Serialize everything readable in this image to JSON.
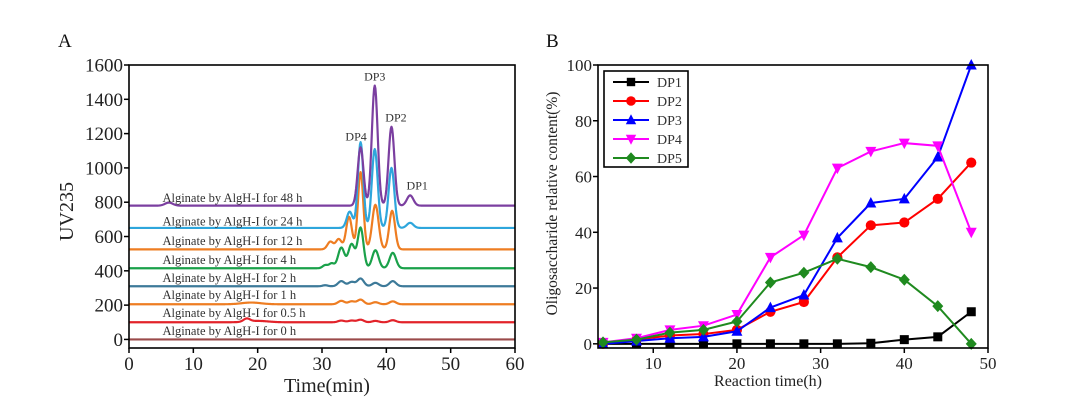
{
  "chart_data": [
    {
      "panel": "A",
      "type": "line",
      "title": "",
      "xlabel": "Time(min)",
      "ylabel": "UV235",
      "xlim": [
        0,
        60
      ],
      "ylim": [
        -50,
        1600
      ],
      "xticks": [
        0,
        10,
        20,
        30,
        40,
        50,
        60
      ],
      "yticks": [
        0,
        200,
        400,
        600,
        800,
        1000,
        1200,
        1400,
        1600
      ],
      "grid": false,
      "peak_labels": [
        {
          "text": "DP4",
          "x": 35.3,
          "y": 1160
        },
        {
          "text": "DP3",
          "x": 38.2,
          "y": 1510
        },
        {
          "text": "DP2",
          "x": 41.5,
          "y": 1270
        },
        {
          "text": "DP1",
          "x": 44.8,
          "y": 875
        }
      ],
      "series": [
        {
          "name": "Alginate by AlgH-I for 48 h",
          "color": "#7b3fa0",
          "baseline": 780,
          "peaks": [
            [
              6.2,
              18,
              0.6
            ],
            [
              36.0,
              340,
              0.45
            ],
            [
              38.2,
              700,
              0.45
            ],
            [
              40.8,
              460,
              0.45
            ],
            [
              43.7,
              60,
              0.5
            ]
          ]
        },
        {
          "name": "Alginate by AlgH-I for 24 h",
          "color": "#2ea6dc",
          "baseline": 650,
          "peaks": [
            [
              34.3,
              95,
              0.45
            ],
            [
              36.0,
              500,
              0.42
            ],
            [
              38.2,
              460,
              0.45
            ],
            [
              40.8,
              350,
              0.45
            ],
            [
              43.7,
              30,
              0.5
            ]
          ]
        },
        {
          "name": "Alginate by AlgH-I for 12 h",
          "color": "#ee7d22",
          "baseline": 525,
          "peaks": [
            [
              31.3,
              45,
              0.45
            ],
            [
              32.6,
              60,
              0.45
            ],
            [
              34.2,
              190,
              0.45
            ],
            [
              36.0,
              450,
              0.42
            ],
            [
              38.3,
              260,
              0.5
            ],
            [
              40.9,
              225,
              0.45
            ]
          ]
        },
        {
          "name": "Alginate by AlgH-I for 4 h",
          "color": "#1aa14a",
          "baseline": 415,
          "peaks": [
            [
              30.5,
              18,
              0.4
            ],
            [
              31.5,
              28,
              0.4
            ],
            [
              33.0,
              120,
              0.5
            ],
            [
              34.6,
              140,
              0.5
            ],
            [
              36.0,
              235,
              0.45
            ],
            [
              38.3,
              105,
              0.5
            ],
            [
              41.0,
              90,
              0.5
            ]
          ]
        },
        {
          "name": "Alginate by AlgH-I for 2 h",
          "color": "#3d7a99",
          "baseline": 310,
          "peaks": [
            [
              30.5,
              6,
              0.4
            ],
            [
              33.0,
              30,
              0.5
            ],
            [
              34.6,
              25,
              0.5
            ],
            [
              36.0,
              45,
              0.5
            ],
            [
              38.3,
              20,
              0.5
            ],
            [
              41.0,
              30,
              0.5
            ]
          ]
        },
        {
          "name": "Alginate by AlgH-I for 1 h",
          "color": "#ee7d22",
          "baseline": 205,
          "peaks": [
            [
              19.0,
              10,
              1.5
            ],
            [
              33.0,
              20,
              0.5
            ],
            [
              34.6,
              17,
              0.5
            ],
            [
              36.0,
              27,
              0.5
            ],
            [
              38.3,
              12,
              0.5
            ],
            [
              41.0,
              17,
              0.5
            ]
          ]
        },
        {
          "name": "Alginate by AlgH-I for 0.5 h",
          "color": "#e2232a",
          "baseline": 100,
          "peaks": [
            [
              18.3,
              18,
              0.5
            ],
            [
              20.0,
              8,
              1.6
            ],
            [
              33.0,
              10,
              0.5
            ],
            [
              34.6,
              10,
              0.5
            ],
            [
              36.0,
              15,
              0.5
            ],
            [
              38.3,
              8,
              0.5
            ],
            [
              41.0,
              12,
              0.5
            ]
          ]
        },
        {
          "name": "Alginate by AlgH-I for 0 h",
          "color": "#9b4a4a",
          "baseline": 0,
          "peaks": []
        }
      ],
      "trace_label_positions": [
        {
          "x": 5.2,
          "y": 800
        },
        {
          "x": 5.2,
          "y": 665
        },
        {
          "x": 5.2,
          "y": 550
        },
        {
          "x": 5.2,
          "y": 440
        },
        {
          "x": 5.2,
          "y": 335
        },
        {
          "x": 5.2,
          "y": 235
        },
        {
          "x": 5.2,
          "y": 130
        },
        {
          "x": 5.2,
          "y": 25
        }
      ]
    },
    {
      "panel": "B",
      "type": "line",
      "title": "",
      "xlabel": "Reaction time(h)",
      "ylabel": "Oligosaccharide relative content(%)",
      "xlim": [
        3.4,
        50
      ],
      "ylim": [
        -1.5,
        100
      ],
      "xticks": [
        10,
        20,
        30,
        40,
        50
      ],
      "yticks": [
        0,
        20,
        40,
        60,
        80,
        100
      ],
      "grid": false,
      "legend": "top-left",
      "x": [
        4,
        8,
        12,
        16,
        20,
        24,
        28,
        32,
        36,
        40,
        44,
        48
      ],
      "series": [
        {
          "name": "DP1",
          "color": "#000000",
          "marker": "square",
          "values": [
            0,
            0,
            0,
            0,
            0,
            0,
            0,
            0,
            0.2,
            1.5,
            2.5,
            11.5
          ]
        },
        {
          "name": "DP2",
          "color": "#ff0000",
          "marker": "circle",
          "values": [
            0,
            1.5,
            3,
            3.5,
            5,
            11.5,
            15,
            31,
            42.5,
            43.5,
            52,
            65
          ]
        },
        {
          "name": "DP3",
          "color": "#0000ff",
          "marker": "triangle-up",
          "values": [
            0,
            1,
            2,
            2.5,
            4.5,
            13,
            17.5,
            38,
            50.5,
            52,
            67,
            100
          ]
        },
        {
          "name": "DP4",
          "color": "#ff00ff",
          "marker": "triangle-down",
          "values": [
            0.5,
            2,
            5,
            6.5,
            10.5,
            31,
            39,
            63,
            69,
            72,
            71,
            40
          ]
        },
        {
          "name": "DP5",
          "color": "#1f8a1f",
          "marker": "diamond",
          "values": [
            0.5,
            1.5,
            4,
            5,
            8,
            22,
            25.5,
            30.5,
            27.5,
            23,
            13.5,
            0
          ]
        }
      ]
    }
  ],
  "panels": {
    "a_letter": "A",
    "b_letter": "B"
  }
}
